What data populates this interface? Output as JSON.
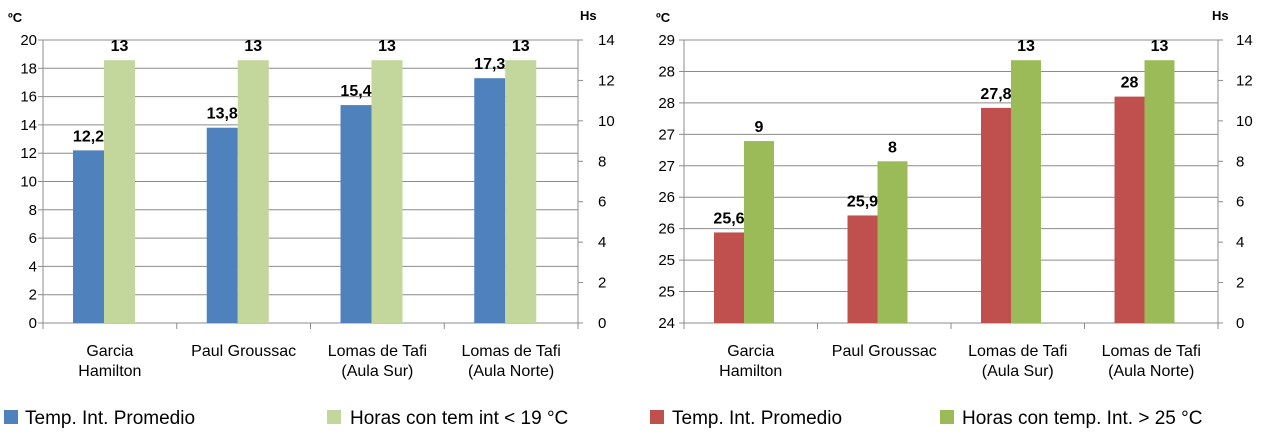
{
  "chart_data": [
    {
      "type": "bar",
      "categories": [
        [
          "Garcia",
          "Hamilton"
        ],
        [
          "Paul Groussac"
        ],
        [
          "Lomas de Tafi",
          "(Aula Sur)"
        ],
        [
          "Lomas de Tafi",
          "(Aula Norte)"
        ]
      ],
      "y_left": {
        "label": "ºC",
        "ylim": [
          0,
          20
        ],
        "ticks": [
          "0",
          "2",
          "4",
          "6",
          "8",
          "10",
          "12",
          "14",
          "16",
          "18",
          "20"
        ]
      },
      "y_right": {
        "label": "Hs",
        "ylim": [
          0,
          14
        ],
        "ticks": [
          "0",
          "2",
          "4",
          "6",
          "8",
          "10",
          "12",
          "14"
        ]
      },
      "series": [
        {
          "name": "Temp. Int. Promedio",
          "axis": "left",
          "color": "#4F81BD",
          "values": [
            12.2,
            13.8,
            15.4,
            17.3
          ],
          "labels": [
            "12,2",
            "13,8",
            "15,4",
            "17,3"
          ]
        },
        {
          "name": "Horas con tem int < 19 °C",
          "axis": "right",
          "color": "#C3D69B",
          "values": [
            13,
            13,
            13,
            13
          ],
          "labels": [
            "13",
            "13",
            "13",
            "13"
          ]
        }
      ],
      "grid": true
    },
    {
      "type": "bar",
      "categories": [
        [
          "Garcia",
          "Hamilton"
        ],
        [
          "Paul Groussac"
        ],
        [
          "Lomas de Tafi",
          "(Aula Sur)"
        ],
        [
          "Lomas de Tafi",
          "(Aula Norte)"
        ]
      ],
      "y_left": {
        "label": "ºC",
        "ylim": [
          24,
          29
        ],
        "ticks": [
          "24",
          "25",
          "25",
          "26",
          "26",
          "27",
          "27",
          "28",
          "28",
          "29"
        ]
      },
      "y_right": {
        "label": "Hs",
        "ylim": [
          0,
          14
        ],
        "ticks": [
          "0",
          "2",
          "4",
          "6",
          "8",
          "10",
          "12",
          "14"
        ]
      },
      "series": [
        {
          "name": "Temp. Int. Promedio",
          "axis": "left",
          "color": "#C0504D",
          "values": [
            25.6,
            25.9,
            27.8,
            28
          ],
          "labels": [
            "25,6",
            "25,9",
            "27,8",
            "28"
          ]
        },
        {
          "name": "Horas con temp. Int. > 25 °C",
          "axis": "right",
          "color": "#9BBB59",
          "values": [
            9,
            8,
            13,
            13
          ],
          "labels": [
            "9",
            "8",
            "13",
            "13"
          ]
        }
      ],
      "grid": true
    }
  ]
}
